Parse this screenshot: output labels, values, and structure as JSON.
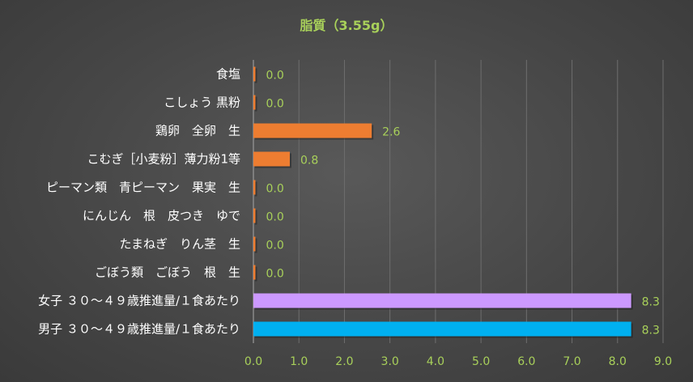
{
  "chart_data": {
    "type": "bar",
    "orientation": "horizontal",
    "title": "脂質（3.55g）",
    "xlabel": "",
    "ylabel": "",
    "xlim": [
      0,
      9
    ],
    "xticks": [
      "0.0",
      "1.0",
      "2.0",
      "3.0",
      "4.0",
      "5.0",
      "6.0",
      "7.0",
      "8.0",
      "9.0"
    ],
    "grid": true,
    "legend": "none",
    "categories": [
      "食塩",
      "こしょう 黒粉",
      "鶏卵　全卵　生",
      "こむぎ［小麦粉］薄力粉1等",
      "ピーマン類　青ピーマン　果実　生",
      "にんじん　根　皮つき　ゆで",
      "たまねぎ　りん茎　生",
      "ごぼう類　ごぼう　根　生",
      "女子 ３０～４９歳推進量/１食あたり",
      "男子 ３０～４９歳推進量/１食あたり"
    ],
    "values": [
      0.0,
      0.0,
      2.6,
      0.8,
      0.0,
      0.0,
      0.0,
      0.0,
      8.3,
      8.3
    ],
    "value_labels": [
      "0.0",
      "0.0",
      "2.6",
      "0.8",
      "0.0",
      "0.0",
      "0.0",
      "0.0",
      "8.3",
      "8.3"
    ],
    "colors": [
      "#ed7d31",
      "#ed7d31",
      "#ed7d31",
      "#ed7d31",
      "#ed7d31",
      "#ed7d31",
      "#ed7d31",
      "#ed7d31",
      "#cc99ff",
      "#00b0f0"
    ]
  }
}
